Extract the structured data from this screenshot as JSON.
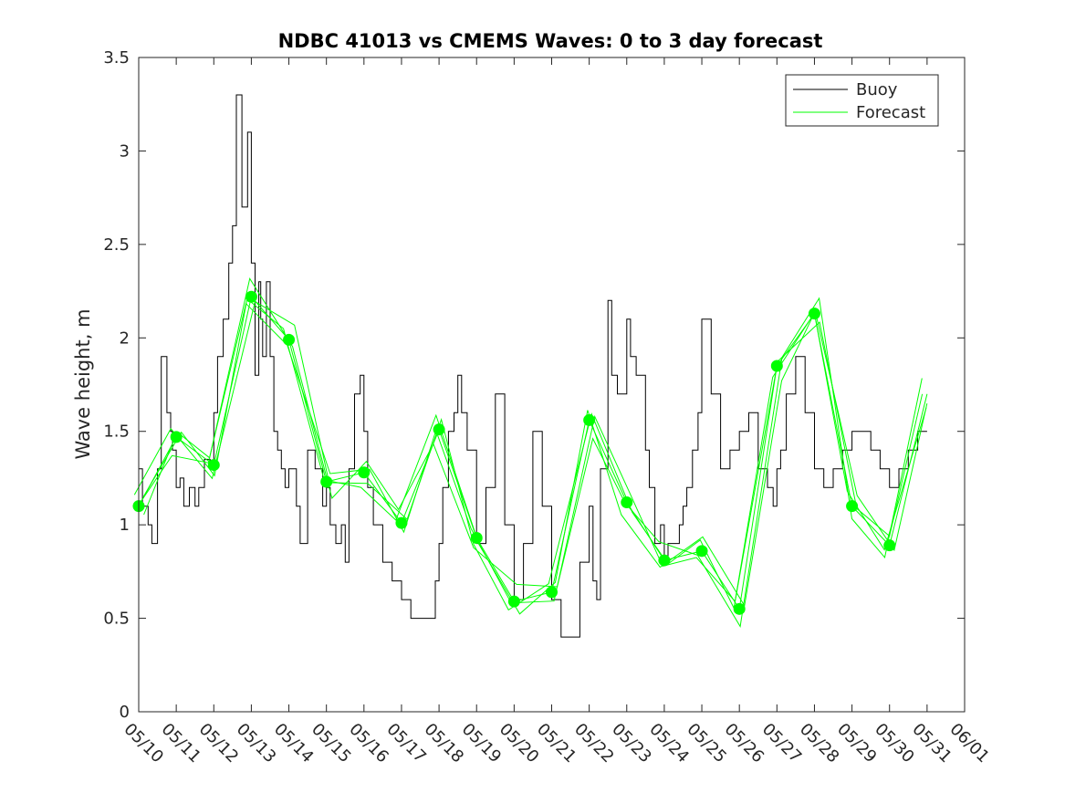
{
  "chart_data": {
    "type": "line",
    "title": "NDBC 41013 vs CMEMS Waves: 0 to 3 day forecast",
    "xlabel": "",
    "ylabel": "Wave height, m",
    "x_date_start": "05/10",
    "x_date_end": "06/01",
    "xtick_labels": [
      "05/10",
      "05/11",
      "05/12",
      "05/13",
      "05/14",
      "05/15",
      "05/16",
      "05/17",
      "05/18",
      "05/19",
      "05/20",
      "05/21",
      "05/22",
      "05/23",
      "05/24",
      "05/25",
      "05/26",
      "05/27",
      "05/28",
      "05/29",
      "05/30",
      "05/31",
      "06/01"
    ],
    "ylim": [
      0,
      3.5
    ],
    "yticks": [
      0,
      0.5,
      1,
      1.5,
      2,
      2.5,
      3,
      3.5
    ],
    "ytick_labels": [
      "0",
      "0.5",
      "1",
      "1.5",
      "2",
      "2.5",
      "3",
      "3.5"
    ],
    "grid": false,
    "legend_position": "top-right",
    "colors": {
      "buoy": "#000000",
      "forecast": "#00ff00",
      "axes": "#262626"
    },
    "series": [
      {
        "name": "Buoy",
        "style": "line",
        "color": "#000000",
        "x_days": [
          0,
          0.1,
          0.25,
          0.35,
          0.5,
          0.6,
          0.75,
          0.85,
          0.9,
          1.0,
          1.1,
          1.2,
          1.35,
          1.5,
          1.6,
          1.75,
          1.9,
          2.0,
          2.1,
          2.25,
          2.4,
          2.5,
          2.6,
          2.75,
          2.9,
          3.0,
          3.1,
          3.2,
          3.25,
          3.3,
          3.4,
          3.5,
          3.6,
          3.7,
          3.8,
          3.9,
          4.0,
          4.1,
          4.2,
          4.3,
          4.5,
          4.7,
          4.9,
          5.0,
          5.1,
          5.25,
          5.4,
          5.5,
          5.6,
          5.75,
          5.9,
          6.0,
          6.1,
          6.25,
          6.5,
          6.75,
          7.0,
          7.25,
          7.5,
          7.75,
          7.9,
          8.0,
          8.1,
          8.25,
          8.4,
          8.5,
          8.6,
          8.75,
          9.0,
          9.25,
          9.5,
          9.75,
          10.0,
          10.25,
          10.5,
          10.75,
          11.0,
          11.25,
          11.5,
          11.75,
          12.0,
          12.1,
          12.2,
          12.3,
          12.5,
          12.6,
          12.75,
          13.0,
          13.1,
          13.25,
          13.5,
          13.6,
          13.75,
          13.9,
          14.0,
          14.1,
          14.25,
          14.4,
          14.5,
          14.6,
          14.75,
          14.9,
          15.0,
          15.25,
          15.5,
          15.75,
          16.0,
          16.25,
          16.5,
          16.75,
          16.9,
          17.0,
          17.1,
          17.25,
          17.5,
          17.75,
          18.0,
          18.25,
          18.5,
          18.75,
          19.0,
          19.25,
          19.5,
          19.75,
          20.0,
          20.25,
          20.5,
          20.75,
          21.0
        ],
        "y_values": [
          1.3,
          1.1,
          1.0,
          0.9,
          1.3,
          1.9,
          1.6,
          1.5,
          1.4,
          1.2,
          1.25,
          1.1,
          1.2,
          1.1,
          1.2,
          1.35,
          1.3,
          1.6,
          1.9,
          2.1,
          2.4,
          2.6,
          3.3,
          2.7,
          3.1,
          2.4,
          1.8,
          2.3,
          2.1,
          1.9,
          2.3,
          1.9,
          1.5,
          1.4,
          1.3,
          1.2,
          1.3,
          1.3,
          1.1,
          0.9,
          1.4,
          1.3,
          1.1,
          1.2,
          1.0,
          0.9,
          1.0,
          0.8,
          1.3,
          1.7,
          1.8,
          1.5,
          1.2,
          1.0,
          0.8,
          0.7,
          0.6,
          0.5,
          0.5,
          0.5,
          0.7,
          0.9,
          1.2,
          1.5,
          1.6,
          1.8,
          1.6,
          1.4,
          0.9,
          1.2,
          1.7,
          1.0,
          0.6,
          0.9,
          1.5,
          1.1,
          0.6,
          0.4,
          0.4,
          0.8,
          1.1,
          0.7,
          0.6,
          1.3,
          2.2,
          1.8,
          1.7,
          2.1,
          1.9,
          1.8,
          1.4,
          1.2,
          0.9,
          1.0,
          0.8,
          0.9,
          0.9,
          1.0,
          1.1,
          1.2,
          1.4,
          1.6,
          2.1,
          1.7,
          1.3,
          1.4,
          1.5,
          1.6,
          1.3,
          1.2,
          1.1,
          1.3,
          1.4,
          1.7,
          1.9,
          1.6,
          1.3,
          1.2,
          1.3,
          1.4,
          1.5,
          1.5,
          1.4,
          1.3,
          1.2,
          1.3,
          1.4,
          1.5,
          1.5
        ]
      },
      {
        "name": "Forecast",
        "style": "lines",
        "color": "#00ff00",
        "x_days": [
          0,
          1,
          2,
          3,
          4,
          5,
          6,
          7,
          8,
          9,
          10,
          11,
          12,
          13,
          14,
          15,
          16,
          17,
          18,
          19,
          20,
          21
        ],
        "y_values": [
          1.1,
          1.47,
          1.32,
          2.22,
          1.99,
          1.23,
          1.28,
          1.01,
          1.51,
          0.93,
          0.59,
          0.64,
          1.56,
          1.12,
          0.81,
          0.86,
          0.55,
          1.85,
          2.13,
          1.1,
          0.89,
          1.7
        ]
      }
    ],
    "markers": {
      "color": "#00ff00",
      "x_days": [
        0,
        1,
        2,
        3,
        4,
        5,
        6,
        7,
        8,
        9,
        10,
        11,
        12,
        13,
        14,
        15,
        16,
        17,
        18,
        19,
        20
      ],
      "y_values": [
        1.1,
        1.47,
        1.32,
        2.22,
        1.99,
        1.23,
        1.28,
        1.01,
        1.51,
        0.93,
        0.59,
        0.64,
        1.56,
        1.12,
        0.81,
        0.86,
        0.55,
        1.85,
        2.13,
        1.1,
        0.89
      ]
    },
    "legend": [
      {
        "label": "Buoy",
        "color": "#000000"
      },
      {
        "label": "Forecast",
        "color": "#00ff00"
      }
    ]
  }
}
